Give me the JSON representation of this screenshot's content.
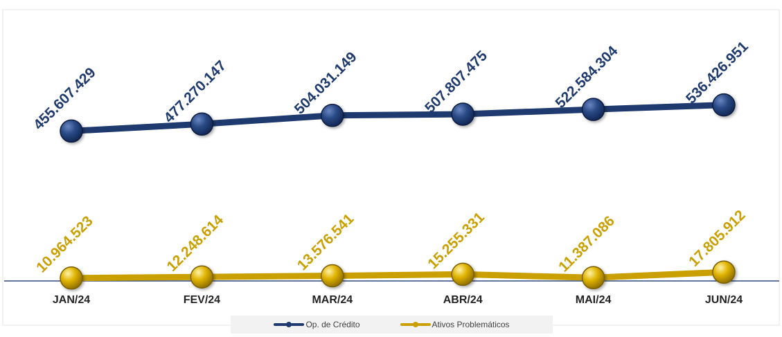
{
  "chart_data": {
    "type": "line",
    "categories": [
      "JAN/24",
      "FEV/24",
      "MAR/24",
      "ABR/24",
      "MAI/24",
      "JUN/24"
    ],
    "series": [
      {
        "name": "Op. de Crédito",
        "values": [
          455607429,
          477270147,
          504031149,
          507807475,
          522584304,
          536426951
        ],
        "labels": [
          "455.607.429",
          "477.270.147",
          "504.031.149",
          "507.807.475",
          "522.584.304",
          "536.426.951"
        ],
        "color": "#1f3a6e"
      },
      {
        "name": "Ativos Problemáticos",
        "values": [
          10964523,
          12248614,
          13576541,
          15255331,
          11387086,
          17805912
        ],
        "labels": [
          "10.964.523",
          "12.248.614",
          "13.576.541",
          "15.255.331",
          "11.387.086",
          "17.805.912"
        ],
        "color": "#c9a000"
      }
    ],
    "legend": "bottom",
    "grid": false,
    "axis_color": "#2e4a7d"
  }
}
